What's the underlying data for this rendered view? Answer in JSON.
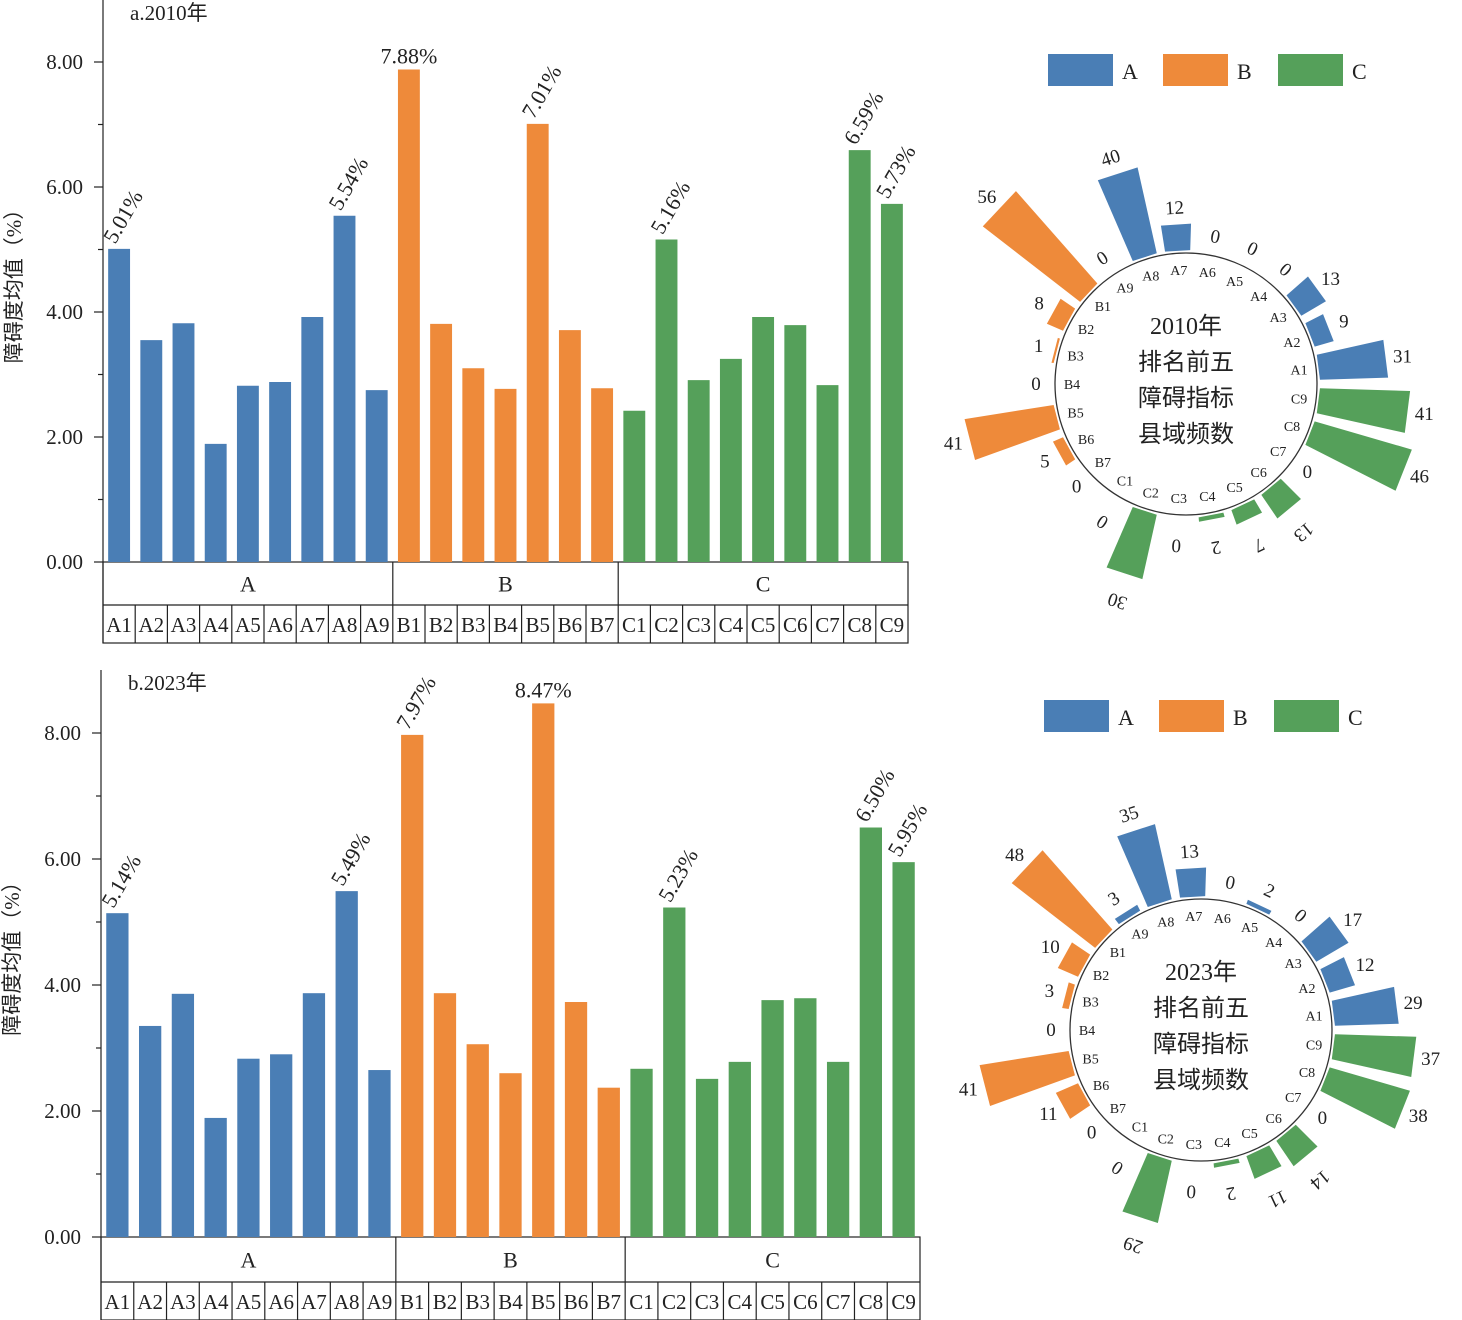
{
  "colors": {
    "A": "#4a7eb5",
    "B": "#ee8a3a",
    "C": "#55a05a"
  },
  "legend": [
    "A",
    "B",
    "C"
  ],
  "chart_data": [
    {
      "type": "bar",
      "title": "a.2010年",
      "ylabel": "障碍度均值（%）",
      "ylim": [
        0,
        8
      ],
      "yticks": [
        "0.00",
        "2.00",
        "4.00",
        "6.00",
        "8.00"
      ],
      "groups": [
        {
          "name": "A",
          "categories": [
            "A1",
            "A2",
            "A3",
            "A4",
            "A5",
            "A6",
            "A7",
            "A8",
            "A9"
          ],
          "values": [
            5.01,
            3.55,
            3.82,
            1.89,
            2.82,
            2.88,
            3.92,
            5.54,
            2.75
          ]
        },
        {
          "name": "B",
          "categories": [
            "B1",
            "B2",
            "B3",
            "B4",
            "B5",
            "B6",
            "B7"
          ],
          "values": [
            7.88,
            3.81,
            3.1,
            2.77,
            7.01,
            3.71,
            2.78
          ]
        },
        {
          "name": "C",
          "categories": [
            "C1",
            "C2",
            "C3",
            "C4",
            "C5",
            "C6",
            "C7",
            "C8",
            "C9"
          ],
          "values": [
            2.42,
            5.16,
            2.91,
            3.25,
            3.92,
            3.79,
            2.83,
            6.59,
            5.73
          ]
        }
      ],
      "annotations": {
        "A1": "5.01%",
        "A8": "5.54%",
        "B1": "7.88%",
        "B5": "7.01%",
        "C2": "5.16%",
        "C8": "6.59%",
        "C9": "5.73%"
      }
    },
    {
      "type": "bar",
      "polar": true,
      "center_text": [
        "2010年",
        "排名前五",
        "障碍指标",
        "县域频数"
      ],
      "categories": [
        "A1",
        "A2",
        "A3",
        "A4",
        "A5",
        "A6",
        "A7",
        "A8",
        "A9",
        "B1",
        "B2",
        "B3",
        "B4",
        "B5",
        "B6",
        "B7",
        "C1",
        "C2",
        "C3",
        "C4",
        "C5",
        "C6",
        "C7",
        "C8",
        "C9"
      ],
      "values": [
        31,
        9,
        13,
        0,
        0,
        0,
        12,
        40,
        0,
        56,
        8,
        1,
        0,
        41,
        5,
        0,
        0,
        30,
        0,
        2,
        7,
        13,
        0,
        46,
        41
      ]
    },
    {
      "type": "bar",
      "title": "b.2023年",
      "ylabel": "障碍度均值（%）",
      "ylim": [
        0,
        8
      ],
      "yticks": [
        "0.00",
        "2.00",
        "4.00",
        "6.00",
        "8.00"
      ],
      "groups": [
        {
          "name": "A",
          "categories": [
            "A1",
            "A2",
            "A3",
            "A4",
            "A5",
            "A6",
            "A7",
            "A8",
            "A9"
          ],
          "values": [
            5.14,
            3.35,
            3.86,
            1.89,
            2.83,
            2.9,
            3.87,
            5.49,
            2.65
          ]
        },
        {
          "name": "B",
          "categories": [
            "B1",
            "B2",
            "B3",
            "B4",
            "B5",
            "B6",
            "B7"
          ],
          "values": [
            7.97,
            3.87,
            3.06,
            2.6,
            8.47,
            3.73,
            2.37
          ]
        },
        {
          "name": "C",
          "categories": [
            "C1",
            "C2",
            "C3",
            "C4",
            "C5",
            "C6",
            "C7",
            "C8",
            "C9"
          ],
          "values": [
            2.67,
            5.23,
            2.51,
            2.78,
            3.76,
            3.79,
            2.78,
            6.5,
            5.95
          ]
        }
      ],
      "annotations": {
        "A1": "5.14%",
        "A8": "5.49%",
        "B1": "7.97%",
        "B5": "8.47%",
        "C2": "5.23%",
        "C8": "6.50%",
        "C9": "5.95%"
      }
    },
    {
      "type": "bar",
      "polar": true,
      "center_text": [
        "2023年",
        "排名前五",
        "障碍指标",
        "县域频数"
      ],
      "categories": [
        "A1",
        "A2",
        "A3",
        "A4",
        "A5",
        "A6",
        "A7",
        "A8",
        "A9",
        "B1",
        "B2",
        "B3",
        "B4",
        "B5",
        "B6",
        "B7",
        "C1",
        "C2",
        "C3",
        "C4",
        "C5",
        "C6",
        "C7",
        "C8",
        "C9"
      ],
      "values": [
        29,
        12,
        17,
        0,
        2,
        0,
        13,
        35,
        3,
        48,
        10,
        3,
        0,
        41,
        11,
        0,
        0,
        29,
        0,
        2,
        11,
        14,
        0,
        38,
        37
      ]
    }
  ]
}
